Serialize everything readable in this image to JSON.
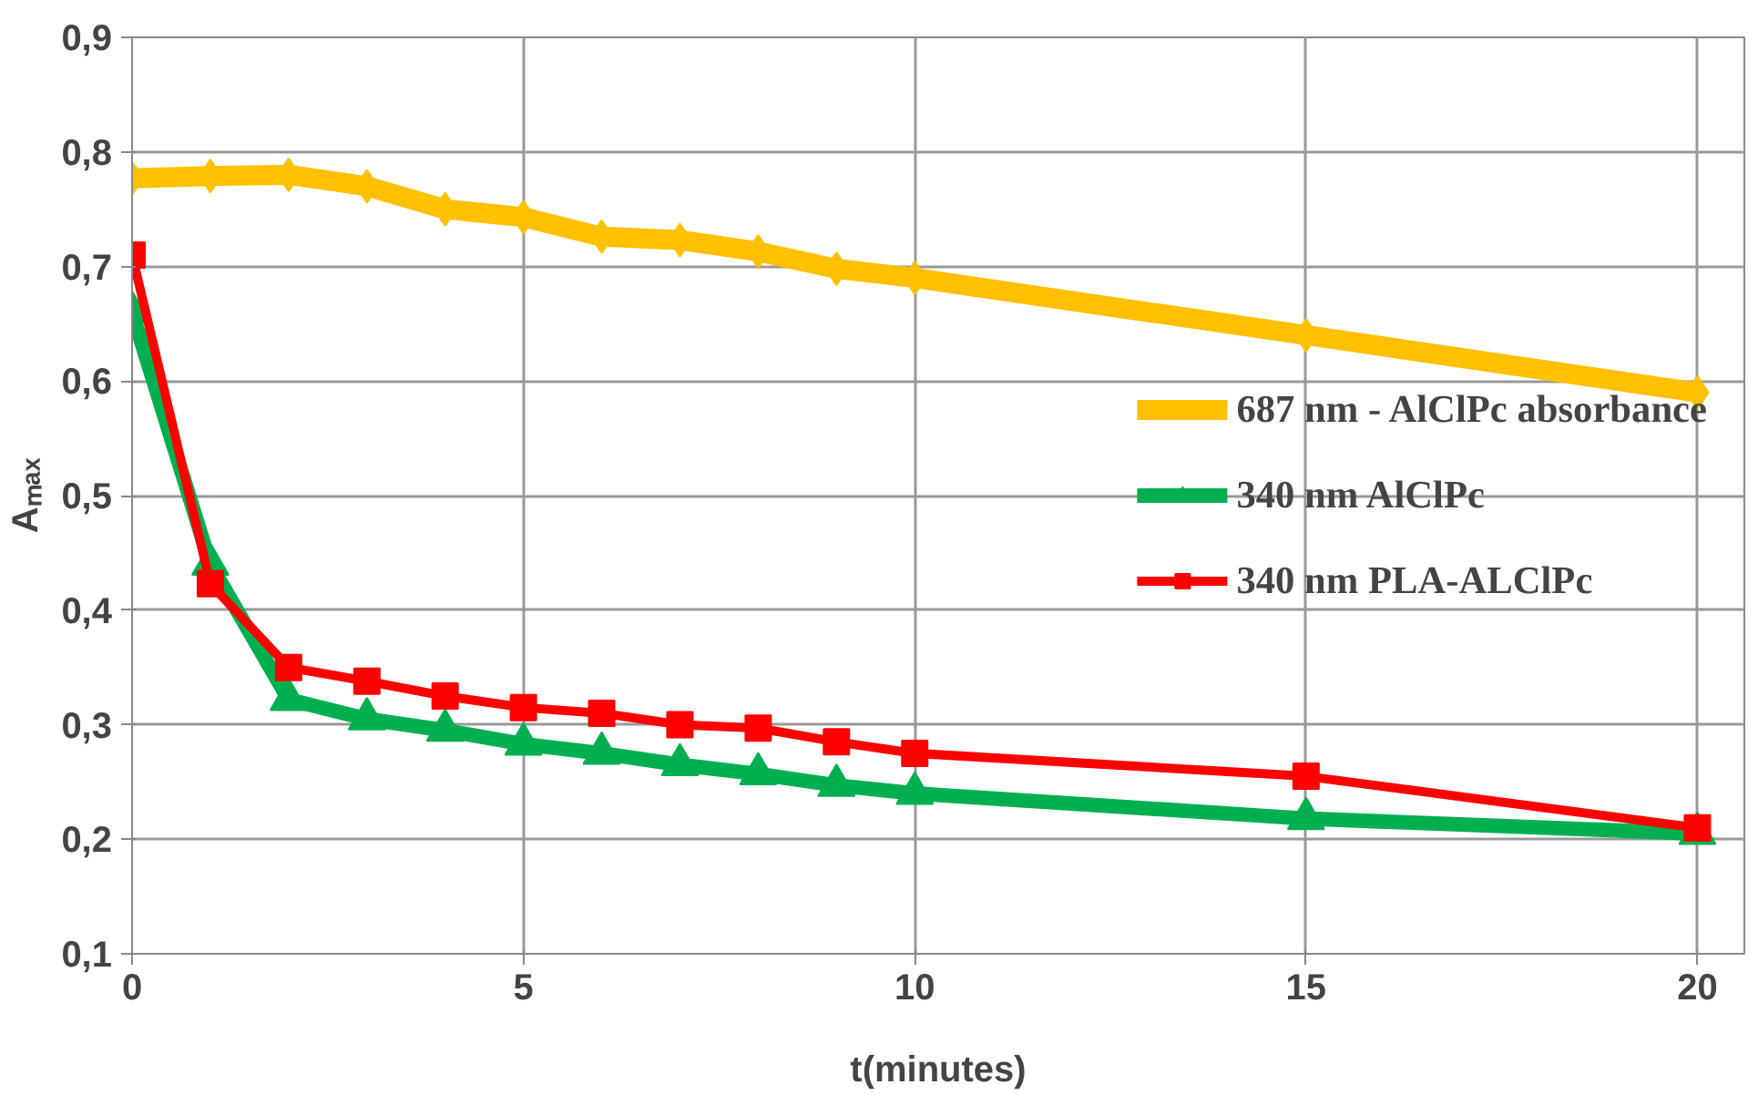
{
  "chart_data": {
    "type": "line",
    "xlabel": "t(minutes)",
    "ylabel": "Aₘₐₓ",
    "x": [
      0,
      1,
      2,
      3,
      4,
      5,
      6,
      7,
      8,
      9,
      10,
      15,
      20
    ],
    "series": [
      {
        "name": "687 nm - AlClPc absorbance",
        "color": "#ffc000",
        "marker": "diamond",
        "values": [
          0.777,
          0.779,
          0.78,
          0.77,
          0.75,
          0.743,
          0.726,
          0.723,
          0.713,
          0.698,
          0.69,
          0.64,
          0.59
        ]
      },
      {
        "name": "340 nm AlClPc",
        "color": "#00b050",
        "marker": "triangle",
        "values": [
          0.66,
          0.44,
          0.322,
          0.305,
          0.295,
          0.283,
          0.275,
          0.265,
          0.257,
          0.247,
          0.24,
          0.218,
          0.205
        ]
      },
      {
        "name": "340 nm PLA-ALClPc",
        "color": "#ff0000",
        "marker": "square",
        "values": [
          0.71,
          0.423,
          0.35,
          0.338,
          0.325,
          0.315,
          0.31,
          0.3,
          0.297,
          0.285,
          0.275,
          0.255,
          0.21
        ]
      }
    ],
    "xlim": [
      0,
      20.6
    ],
    "ylim": [
      0.1,
      0.9
    ],
    "xticks": [
      0,
      5,
      10,
      15,
      20
    ],
    "yticks": [
      {
        "value": 0.1,
        "label": "0,1"
      },
      {
        "value": 0.2,
        "label": "0,2"
      },
      {
        "value": 0.3,
        "label": "0,3"
      },
      {
        "value": 0.4,
        "label": "0,4"
      },
      {
        "value": 0.5,
        "label": "0,5"
      },
      {
        "value": 0.6,
        "label": "0,6"
      },
      {
        "value": 0.7,
        "label": "0,7"
      },
      {
        "value": 0.8,
        "label": "0,8"
      },
      {
        "value": 0.9,
        "label": "0,9"
      }
    ],
    "grid": true,
    "legend": "right",
    "line_style": "solid"
  }
}
